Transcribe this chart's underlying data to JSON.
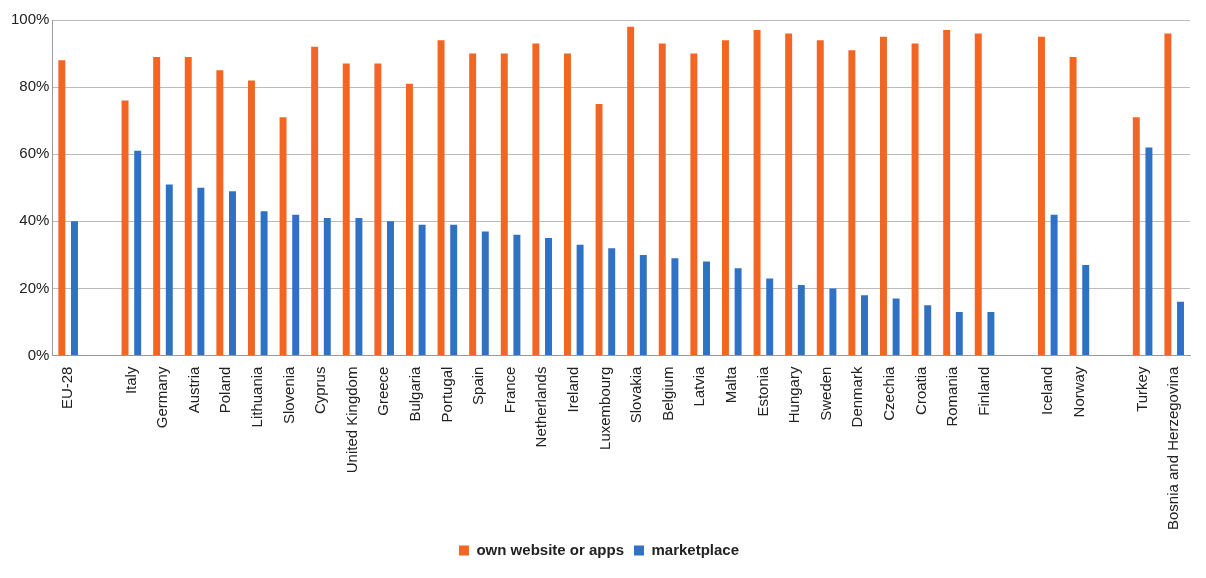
{
  "chart_data": {
    "type": "bar",
    "categories": [
      "EU-28",
      null,
      "Italy",
      "Germany",
      "Austria",
      "Poland",
      "Lithuania",
      "Slovenia",
      "Cyprus",
      "United Kingdom",
      "Greece",
      "Bulgaria",
      "Portugal",
      "Spain",
      "France",
      "Netherlands",
      "Ireland",
      "Luxembourg",
      "Slovakia",
      "Belgium",
      "Latvia",
      "Malta",
      "Estonia",
      "Hungary",
      "Sweden",
      "Denmark",
      "Czechia",
      "Croatia",
      "Romania",
      "Finland",
      null,
      "Iceland",
      "Norway",
      null,
      "Turkey",
      "Bosnia and Herzegovina"
    ],
    "series": [
      {
        "name": "own website or apps",
        "color": "#f26522",
        "values": [
          88,
          null,
          76,
          89,
          89,
          85,
          82,
          71,
          92,
          87,
          87,
          81,
          94,
          90,
          90,
          93,
          90,
          75,
          98,
          93,
          90,
          94,
          97,
          96,
          94,
          91,
          95,
          93,
          97,
          96,
          null,
          95,
          89,
          null,
          71,
          96
        ]
      },
      {
        "name": "marketplace",
        "color": "#2f72c4",
        "values": [
          40,
          null,
          61,
          51,
          50,
          49,
          43,
          42,
          41,
          41,
          40,
          39,
          39,
          37,
          36,
          35,
          33,
          32,
          30,
          29,
          28,
          26,
          23,
          21,
          20,
          18,
          17,
          15,
          13,
          13,
          null,
          42,
          27,
          null,
          62,
          16
        ]
      }
    ],
    "ylim": [
      0,
      100
    ],
    "yticks": [
      {
        "value": 0,
        "label": "0%"
      },
      {
        "value": 20,
        "label": "20%"
      },
      {
        "value": 40,
        "label": "40%"
      },
      {
        "value": 60,
        "label": "60%"
      },
      {
        "value": 80,
        "label": "80%"
      },
      {
        "value": 100,
        "label": "100%"
      }
    ],
    "grid": "y",
    "legend": "bottom"
  }
}
